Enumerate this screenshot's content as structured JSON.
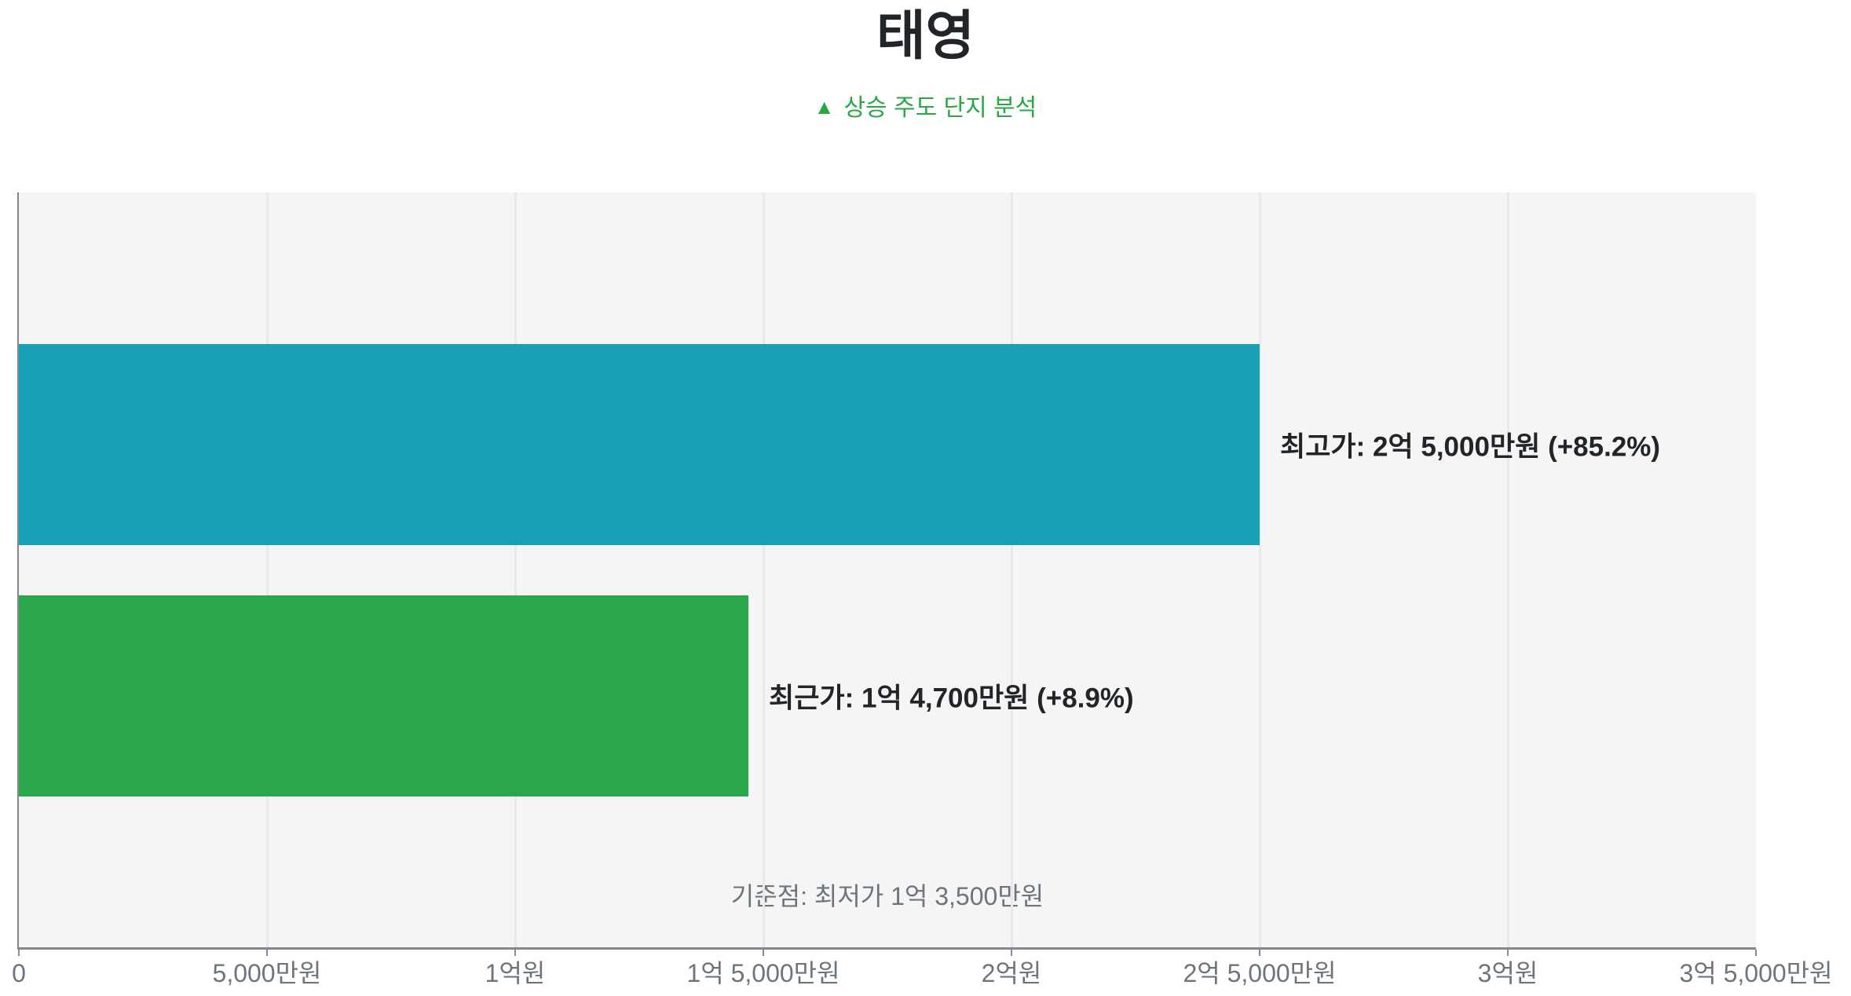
{
  "page": {
    "title": "태영",
    "subtitle": {
      "marker": "▲",
      "text": "상승 주도 단지 분석"
    }
  },
  "chart_data": {
    "type": "bar",
    "orientation": "horizontal",
    "title": "태영",
    "subtitle": "▲ 상승 주도 단지 분석",
    "unit": "만원",
    "categories": [
      "최고가",
      "최근가"
    ],
    "series": [
      {
        "key": "highest-price",
        "category": "최고가",
        "value_manwon": 25000,
        "change": "+85.2%",
        "label": "최고가: 2억 5,000만원 (+85.2%)",
        "color": "#18a0b4"
      },
      {
        "key": "recent-price",
        "category": "최근가",
        "value_manwon": 14700,
        "change": "+8.9%",
        "label": "최근가: 1억 4,700만원 (+8.9%)",
        "color": "#2aa74a"
      }
    ],
    "baseline": {
      "label": "기준점: 최저가 1억 3,500만원",
      "value_manwon": 13500
    },
    "x_axis": {
      "xlim_manwon": [
        0,
        35000
      ],
      "ticks": [
        {
          "value_manwon": 0,
          "label": "0"
        },
        {
          "value_manwon": 5000,
          "label": "5,000만원"
        },
        {
          "value_manwon": 10000,
          "label": "1억원"
        },
        {
          "value_manwon": 15000,
          "label": "1억 5,000만원"
        },
        {
          "value_manwon": 20000,
          "label": "2억원"
        },
        {
          "value_manwon": 25000,
          "label": "2억 5,000만원"
        },
        {
          "value_manwon": 30000,
          "label": "3억원"
        },
        {
          "value_manwon": 35000,
          "label": "3억 5,000만원"
        }
      ]
    },
    "grid": true,
    "legend": false,
    "colors": {
      "plot_background": "#f5f5f5",
      "gridline": "#e9e9e9",
      "axis": "#828890",
      "title_text": "#212529",
      "bar_label_text": "#212529",
      "muted_text": "#6c757d",
      "subtitle_green": "#28a745"
    }
  }
}
